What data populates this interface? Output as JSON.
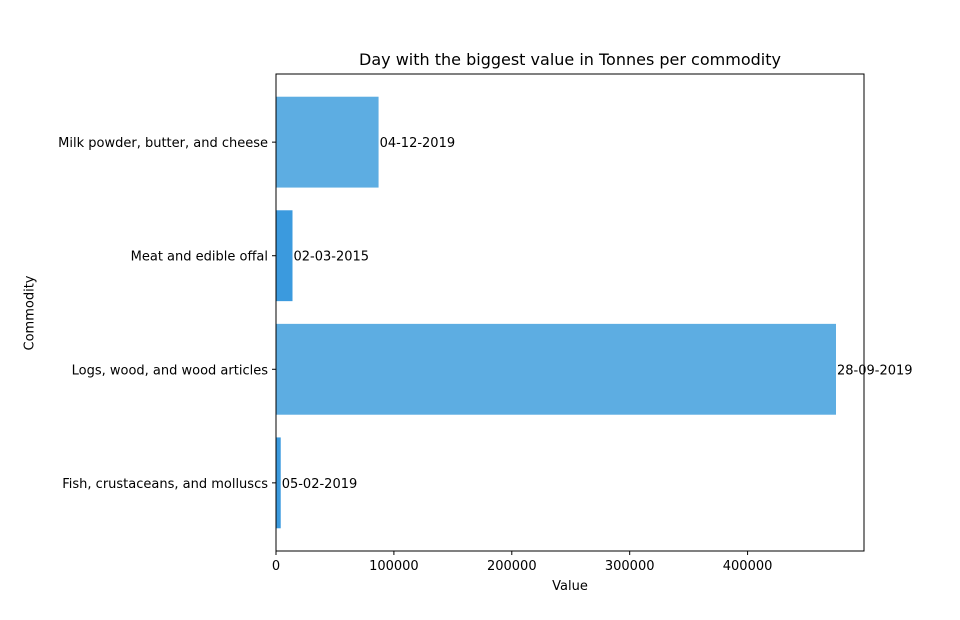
{
  "chart_data": {
    "type": "bar",
    "orientation": "horizontal",
    "title": "Day with the biggest value in Tonnes per commodity",
    "xlabel": "Value",
    "ylabel": "Commodity",
    "categories": [
      "Fish, crustaceans, and molluscs",
      "Logs, wood, and wood articles",
      "Meat and edible offal",
      "Milk powder, butter, and cheese"
    ],
    "values": [
      4000,
      475000,
      14000,
      87000
    ],
    "data_labels": [
      "05-02-2019",
      "28-09-2019",
      "02-03-2015",
      "04-12-2019"
    ],
    "bar_colors": [
      "#3b9ade",
      "#5dade2",
      "#3b9ade",
      "#5dade2"
    ],
    "xticks": [
      0,
      100000,
      200000,
      300000,
      400000
    ],
    "xlim": [
      0,
      498750
    ],
    "grid": false,
    "legend": "none"
  }
}
